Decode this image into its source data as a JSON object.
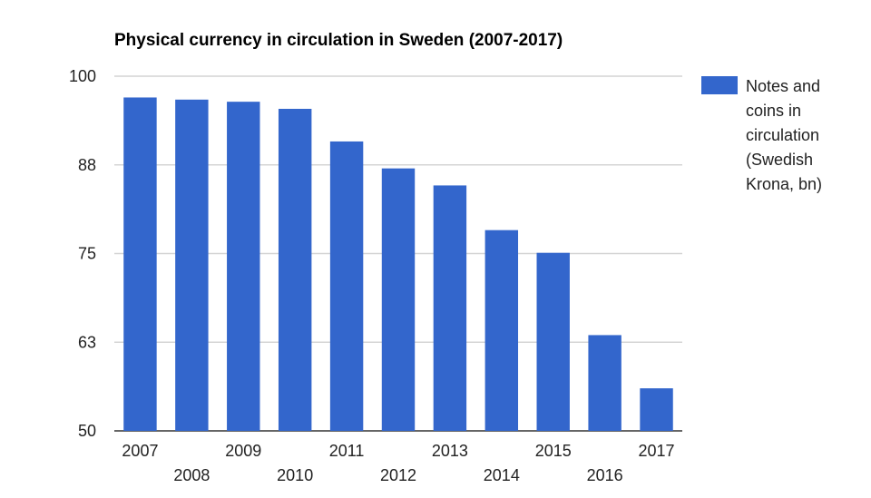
{
  "chart_data": {
    "type": "bar",
    "title": "Physical currency in circulation in Sweden (2007-2017)",
    "categories": [
      "2007",
      "2008",
      "2009",
      "2010",
      "2011",
      "2012",
      "2013",
      "2014",
      "2015",
      "2016",
      "2017"
    ],
    "series": [
      {
        "name": "Notes and coins in circulation (Swedish Krona, bn)",
        "values": [
          97,
          96.7,
          96.4,
          95.4,
          90.8,
          87,
          84.6,
          78.3,
          75.1,
          63.5,
          56
        ]
      }
    ],
    "ylim": [
      50,
      100
    ],
    "yticks": [
      "50",
      "63",
      "75",
      "88",
      "100"
    ],
    "xlabel": "",
    "ylabel": "",
    "legend": {
      "position": "right",
      "lines": [
        "Notes and",
        "coins in",
        "circulation",
        "(Swedish",
        "Krona, bn)"
      ]
    },
    "grid": true,
    "colors": {
      "bar": "#3366cc"
    }
  }
}
